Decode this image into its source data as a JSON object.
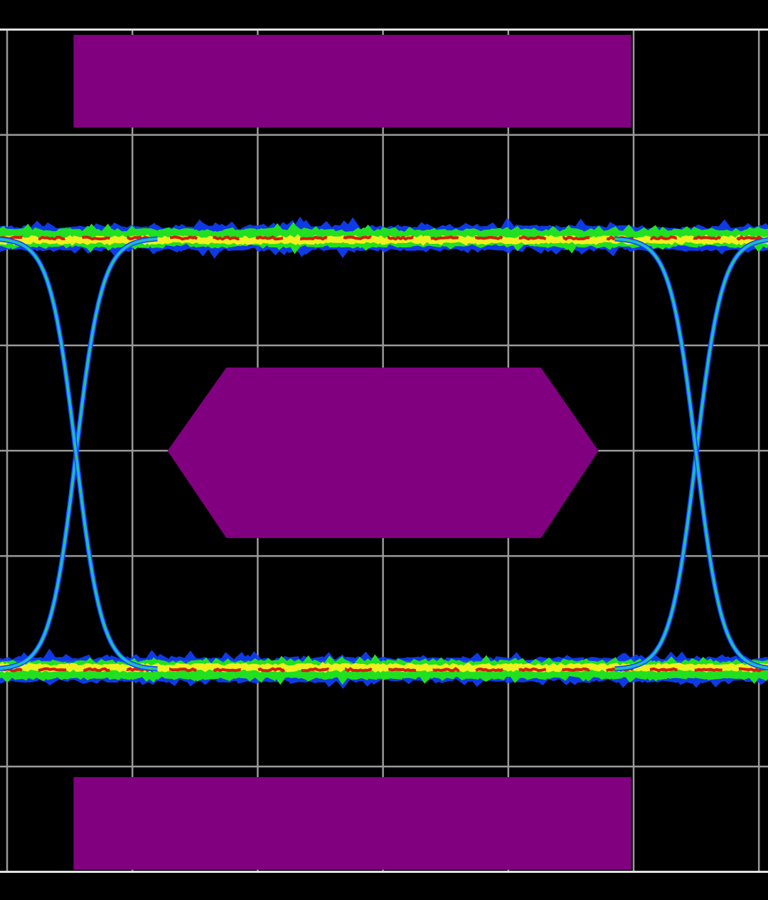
{
  "chart_data": {
    "type": "line",
    "kind": "eye-diagram",
    "title": "",
    "xlabel": "",
    "ylabel": "",
    "units": "grid divisions",
    "xlim": [
      0,
      6
    ],
    "ylim": [
      -4,
      4
    ],
    "grid": true,
    "background_color": "#000000",
    "grid_color": "#9a9a9a",
    "frame_color": "#e6e6e6",
    "mask_color": "#800080",
    "trace_colors": {
      "outer": "#1040ff",
      "edge": "#20b0e0",
      "mid": "#20e020",
      "hot": "#f0f020",
      "core": "#d02010"
    },
    "levels": {
      "high": 2.02,
      "low": -2.08
    },
    "crossings_x": [
      0.55,
      5.5
    ],
    "transition_width": 0.65,
    "masks": [
      {
        "name": "top-mask",
        "points": [
          [
            0.53,
            3.95
          ],
          [
            4.98,
            3.95
          ],
          [
            4.98,
            3.07
          ],
          [
            0.53,
            3.07
          ]
        ]
      },
      {
        "name": "center-mask",
        "points": [
          [
            1.28,
            0
          ],
          [
            1.75,
            0.79
          ],
          [
            4.26,
            0.79
          ],
          [
            4.72,
            0
          ],
          [
            4.26,
            -0.83
          ],
          [
            1.75,
            -0.83
          ]
        ]
      },
      {
        "name": "bottom-mask",
        "points": [
          [
            0.53,
            -3.1
          ],
          [
            4.98,
            -3.1
          ],
          [
            4.98,
            -3.98
          ],
          [
            0.53,
            -3.98
          ]
        ]
      }
    ]
  }
}
